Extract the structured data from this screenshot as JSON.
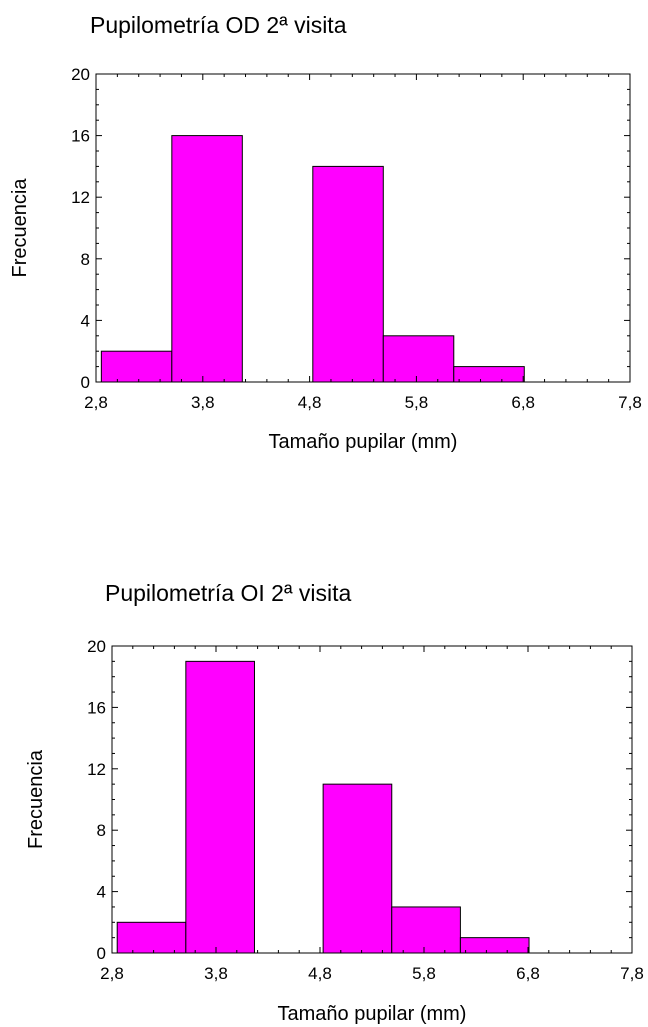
{
  "chart_data": [
    {
      "type": "bar",
      "title": "Pupilometría OD 2ª visita",
      "xlabel": "Tamaño pupilar (mm)",
      "ylabel": "Frecuencia",
      "xlim": [
        2.8,
        7.8
      ],
      "ylim": [
        0,
        20
      ],
      "xticks": [
        "2,8",
        "3,8",
        "4,8",
        "5,8",
        "6,8",
        "7,8"
      ],
      "yticks": [
        "0",
        "4",
        "8",
        "12",
        "16",
        "20"
      ],
      "bins": [
        {
          "x0": 2.85,
          "x1": 3.51,
          "count": 2
        },
        {
          "x0": 3.51,
          "x1": 4.17,
          "count": 16
        },
        {
          "x0": 4.17,
          "x1": 4.83,
          "count": 0
        },
        {
          "x0": 4.83,
          "x1": 5.49,
          "count": 14
        },
        {
          "x0": 5.49,
          "x1": 6.15,
          "count": 3
        },
        {
          "x0": 6.15,
          "x1": 6.81,
          "count": 1
        },
        {
          "x0": 6.81,
          "x1": 7.47,
          "count": 0
        }
      ],
      "bar_color": "#ff00ff"
    },
    {
      "type": "bar",
      "title": "Pupilometría OI 2ª visita",
      "xlabel": "Tamaño pupilar (mm)",
      "ylabel": "Frecuencia",
      "xlim": [
        2.8,
        7.8
      ],
      "ylim": [
        0,
        20
      ],
      "xticks": [
        "2,8",
        "3,8",
        "4,8",
        "5,8",
        "6,8",
        "7,8"
      ],
      "yticks": [
        "0",
        "4",
        "8",
        "12",
        "16",
        "20"
      ],
      "bins": [
        {
          "x0": 2.85,
          "x1": 3.51,
          "count": 2
        },
        {
          "x0": 3.51,
          "x1": 4.17,
          "count": 19
        },
        {
          "x0": 4.17,
          "x1": 4.83,
          "count": 0
        },
        {
          "x0": 4.83,
          "x1": 5.49,
          "count": 11
        },
        {
          "x0": 5.49,
          "x1": 6.15,
          "count": 3
        },
        {
          "x0": 6.15,
          "x1": 6.81,
          "count": 1
        },
        {
          "x0": 6.81,
          "x1": 7.47,
          "count": 0
        }
      ],
      "bar_color": "#ff00ff"
    }
  ]
}
